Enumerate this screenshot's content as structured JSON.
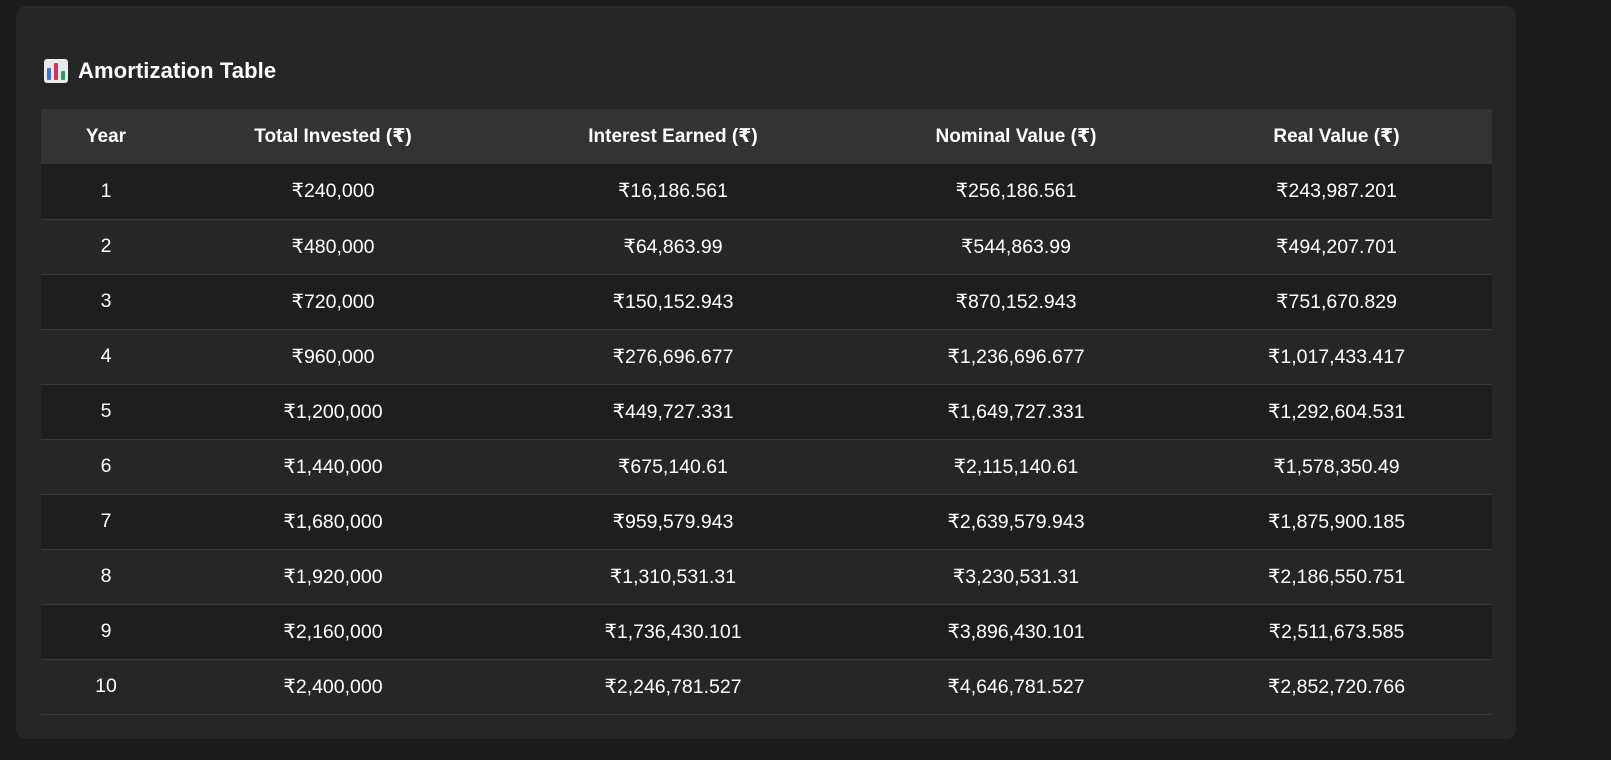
{
  "section": {
    "title": "Amortization Table",
    "icon": "bar-chart-icon"
  },
  "table": {
    "columns": [
      "Year",
      "Total Invested (₹)",
      "Interest Earned (₹)",
      "Nominal Value (₹)",
      "Real Value (₹)"
    ],
    "rows": [
      [
        "1",
        "₹240,000",
        "₹16,186.561",
        "₹256,186.561",
        "₹243,987.201"
      ],
      [
        "2",
        "₹480,000",
        "₹64,863.99",
        "₹544,863.99",
        "₹494,207.701"
      ],
      [
        "3",
        "₹720,000",
        "₹150,152.943",
        "₹870,152.943",
        "₹751,670.829"
      ],
      [
        "4",
        "₹960,000",
        "₹276,696.677",
        "₹1,236,696.677",
        "₹1,017,433.417"
      ],
      [
        "5",
        "₹1,200,000",
        "₹449,727.331",
        "₹1,649,727.331",
        "₹1,292,604.531"
      ],
      [
        "6",
        "₹1,440,000",
        "₹675,140.61",
        "₹2,115,140.61",
        "₹1,578,350.49"
      ],
      [
        "7",
        "₹1,680,000",
        "₹959,579.943",
        "₹2,639,579.943",
        "₹1,875,900.185"
      ],
      [
        "8",
        "₹1,920,000",
        "₹1,310,531.31",
        "₹3,230,531.31",
        "₹2,186,550.751"
      ],
      [
        "9",
        "₹2,160,000",
        "₹1,736,430.101",
        "₹3,896,430.101",
        "₹2,511,673.585"
      ],
      [
        "10",
        "₹2,400,000",
        "₹2,246,781.527",
        "₹4,646,781.527",
        "₹2,852,720.766"
      ]
    ]
  },
  "colors": {
    "page_bg": "#1b1b1b",
    "card_bg": "#262626",
    "header_bg": "#333333",
    "row_odd_bg": "#1e1e1e",
    "row_even_bg": "#262626",
    "text": "#ffffff"
  }
}
